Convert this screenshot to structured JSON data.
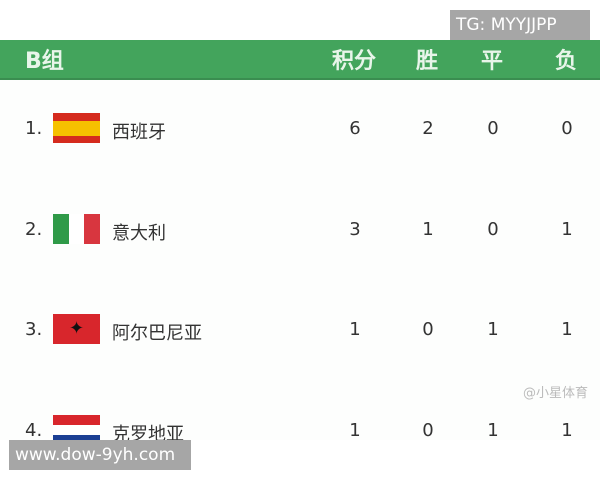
{
  "header": {
    "group": "B组",
    "points": "积分",
    "win": "胜",
    "draw": "平",
    "loss": "负"
  },
  "rows": [
    {
      "rank": "1.",
      "team": "西班牙",
      "flag": "spain-flag",
      "points": "6",
      "win": "2",
      "draw": "0",
      "loss": "0"
    },
    {
      "rank": "2.",
      "team": "意大利",
      "flag": "italy-flag",
      "points": "3",
      "win": "1",
      "draw": "0",
      "loss": "1"
    },
    {
      "rank": "3.",
      "team": "阿尔巴尼亚",
      "flag": "albania-flag",
      "points": "1",
      "win": "0",
      "draw": "1",
      "loss": "1"
    },
    {
      "rank": "4.",
      "team": "克罗地亚",
      "flag": "croatia-flag",
      "points": "1",
      "win": "0",
      "draw": "1",
      "loss": "1"
    }
  ],
  "watermarks": {
    "top": "TG: MYYJJPP",
    "bottom": "www.dow-9yh.com",
    "credit": "@小星体育"
  },
  "colors": {
    "header": "#43a45c"
  }
}
